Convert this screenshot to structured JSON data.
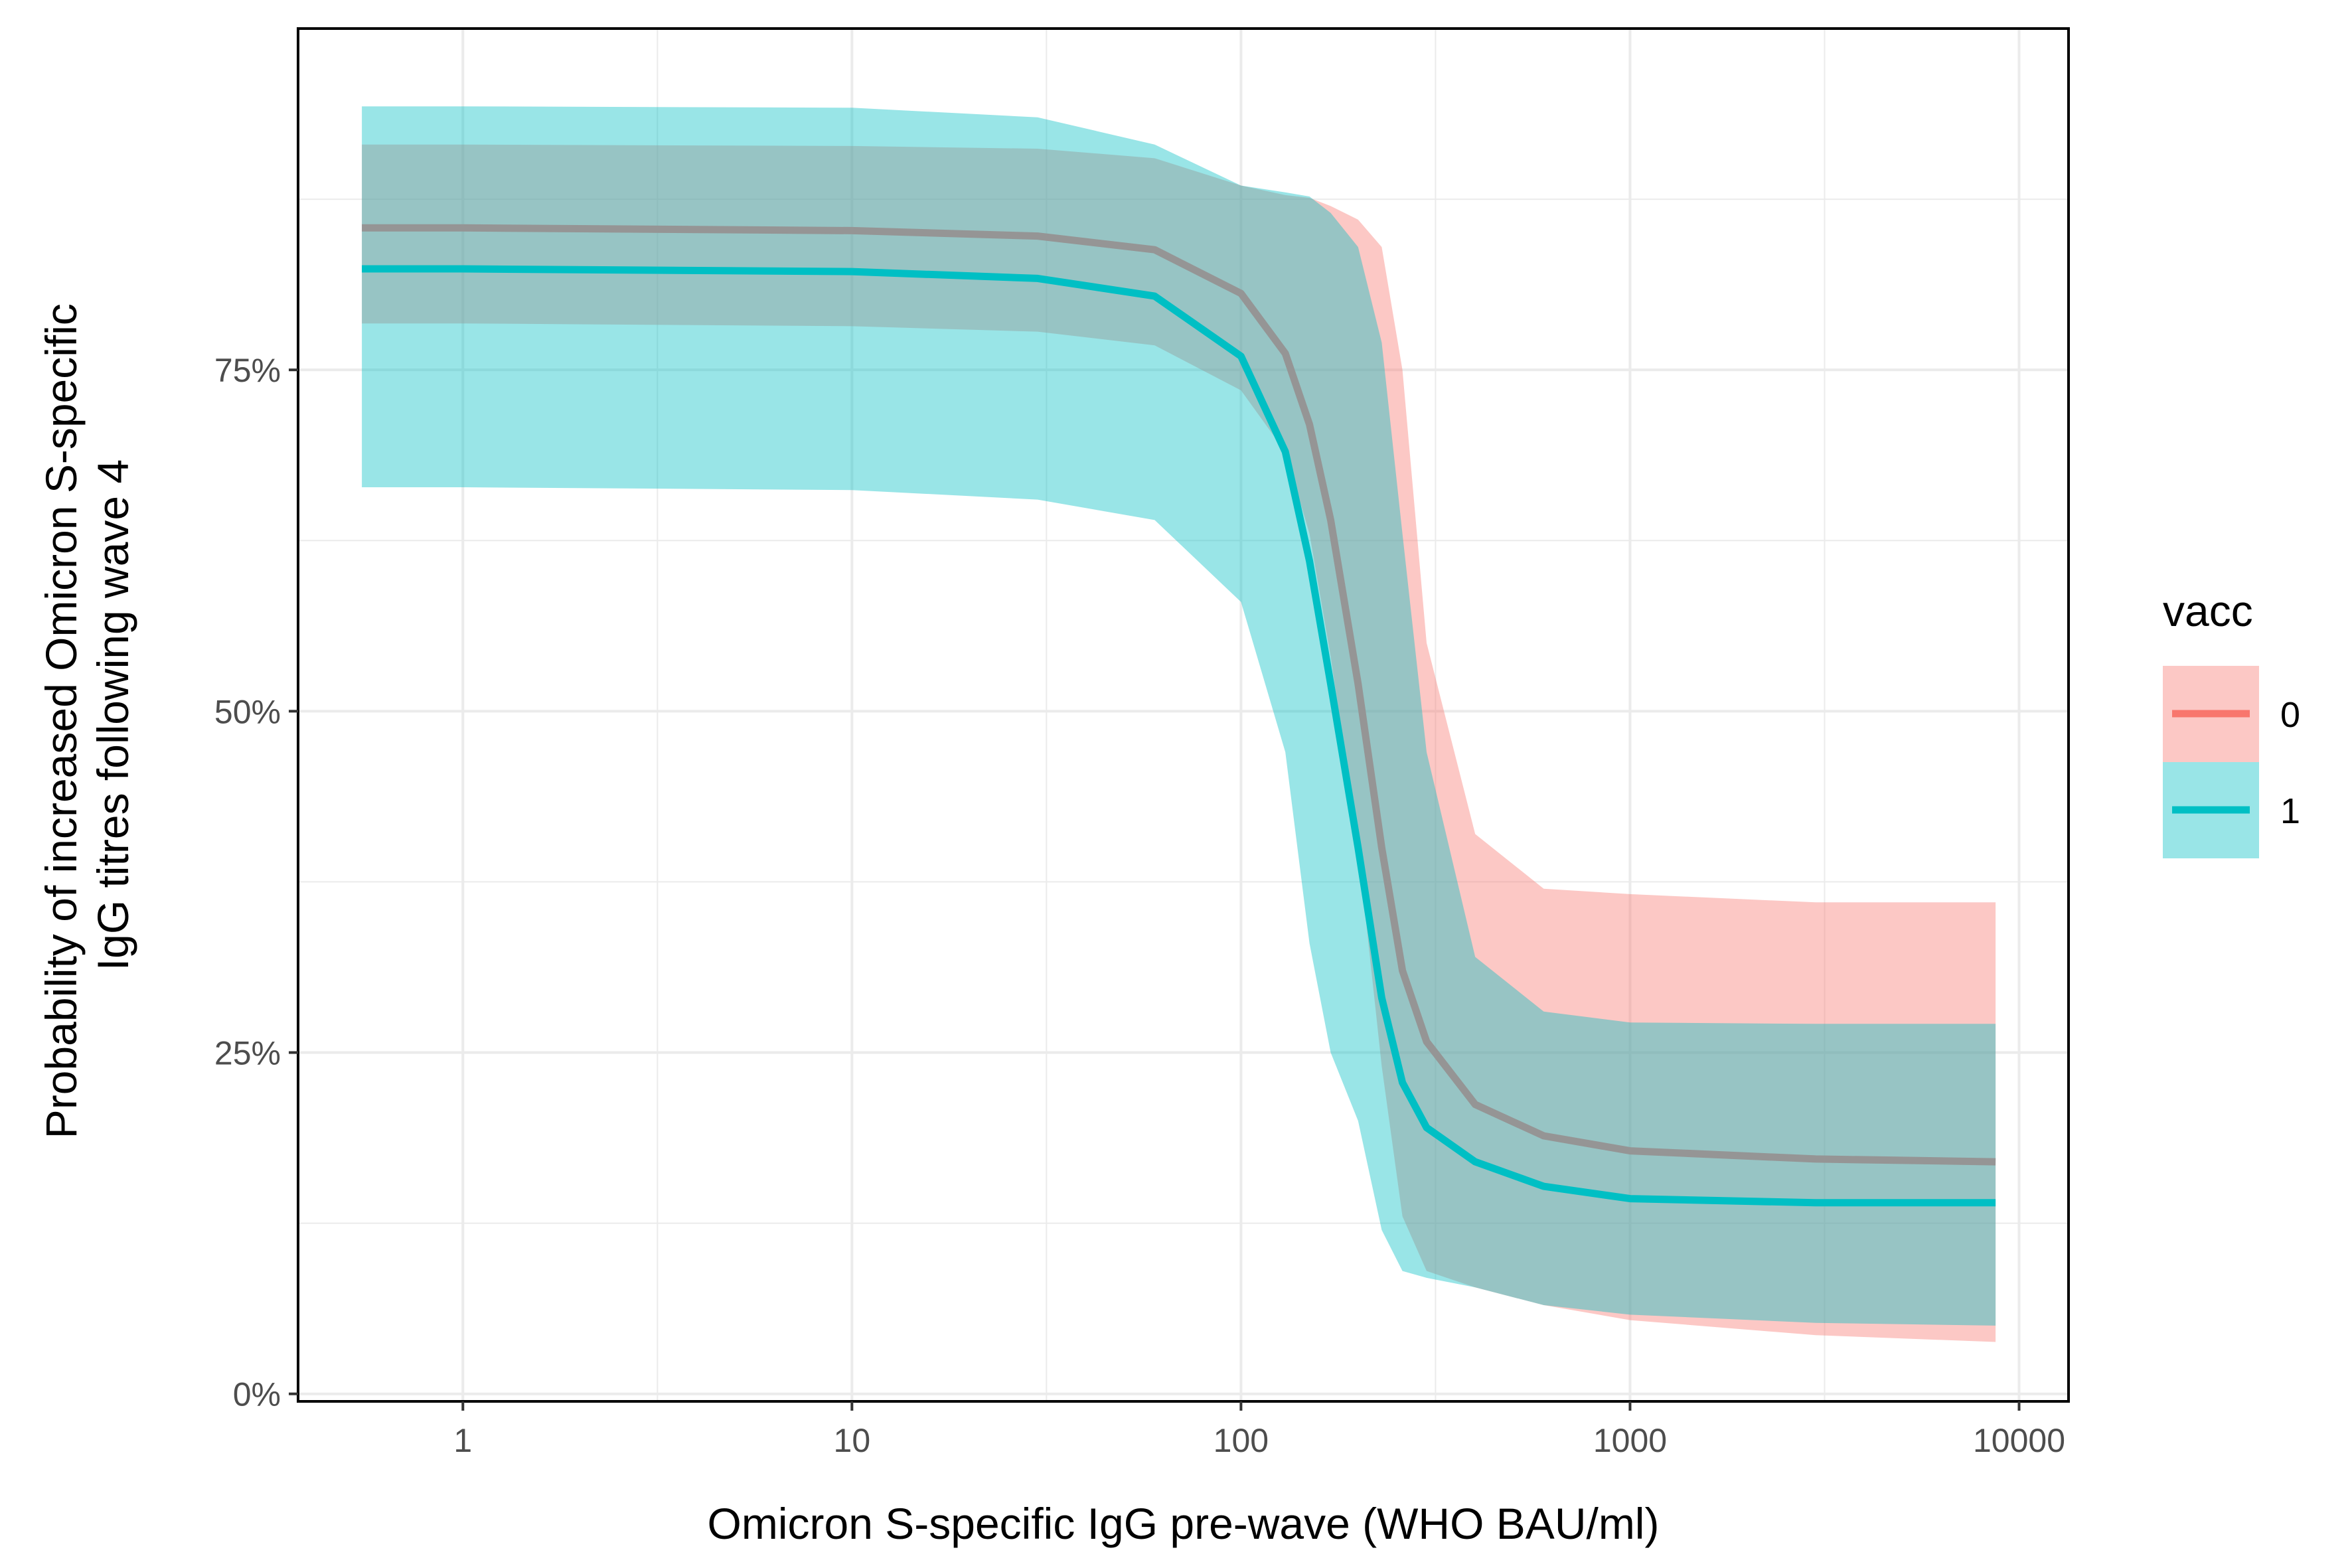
{
  "chart_data": {
    "type": "line",
    "xlabel": "Omicron S-specific IgG pre-wave (WHO BAU/ml)",
    "ylabel": [
      "Probability of increased Omicron S-specific",
      "IgG titres following wave 4"
    ],
    "x_scale": "log10",
    "xlim": [
      0.377,
      13400
    ],
    "ylim": [
      -0.0055,
      1.0
    ],
    "x_ticks": [
      {
        "value": 1,
        "label": "1"
      },
      {
        "value": 10,
        "label": "10"
      },
      {
        "value": 100,
        "label": "100"
      },
      {
        "value": 1000,
        "label": "1000"
      },
      {
        "value": 10000,
        "label": "10000"
      }
    ],
    "y_ticks": [
      {
        "value": 0,
        "label": "0%"
      },
      {
        "value": 0.25,
        "label": "25%"
      },
      {
        "value": 0.5,
        "label": "50%"
      },
      {
        "value": 0.75,
        "label": "75%"
      }
    ],
    "grid": true,
    "legend": {
      "title": "vacc",
      "position": "right"
    },
    "series": [
      {
        "name": "0",
        "color": "#F8766D",
        "x": [
          0.55,
          1,
          10,
          30,
          60,
          100,
          130,
          150,
          170,
          200,
          230,
          260,
          300,
          400,
          600,
          1000,
          3000,
          8700
        ],
        "y": [
          0.854,
          0.854,
          0.852,
          0.848,
          0.838,
          0.806,
          0.762,
          0.71,
          0.64,
          0.52,
          0.4,
          0.31,
          0.258,
          0.212,
          0.189,
          0.178,
          0.172,
          0.17
        ],
        "lower": [
          0.784,
          0.784,
          0.782,
          0.778,
          0.768,
          0.735,
          0.69,
          0.63,
          0.54,
          0.4,
          0.24,
          0.13,
          0.09,
          0.078,
          0.065,
          0.054,
          0.043,
          0.038
        ],
        "upper": [
          0.915,
          0.915,
          0.914,
          0.912,
          0.905,
          0.885,
          0.878,
          0.876,
          0.87,
          0.86,
          0.84,
          0.75,
          0.55,
          0.41,
          0.37,
          0.366,
          0.36,
          0.36
        ]
      },
      {
        "name": "1",
        "color": "#00BFC4",
        "x": [
          0.55,
          1,
          10,
          30,
          60,
          100,
          130,
          150,
          170,
          200,
          230,
          260,
          300,
          400,
          600,
          1000,
          3000,
          8700
        ],
        "y": [
          0.824,
          0.824,
          0.822,
          0.817,
          0.804,
          0.76,
          0.69,
          0.61,
          0.52,
          0.4,
          0.29,
          0.228,
          0.195,
          0.17,
          0.152,
          0.143,
          0.14,
          0.14
        ],
        "lower": [
          0.664,
          0.664,
          0.662,
          0.655,
          0.64,
          0.58,
          0.47,
          0.33,
          0.25,
          0.2,
          0.12,
          0.09,
          0.085,
          0.078,
          0.065,
          0.058,
          0.052,
          0.05
        ],
        "upper": [
          0.943,
          0.943,
          0.942,
          0.935,
          0.915,
          0.885,
          0.88,
          0.877,
          0.865,
          0.84,
          0.77,
          0.63,
          0.47,
          0.32,
          0.28,
          0.272,
          0.271,
          0.271
        ]
      }
    ]
  }
}
